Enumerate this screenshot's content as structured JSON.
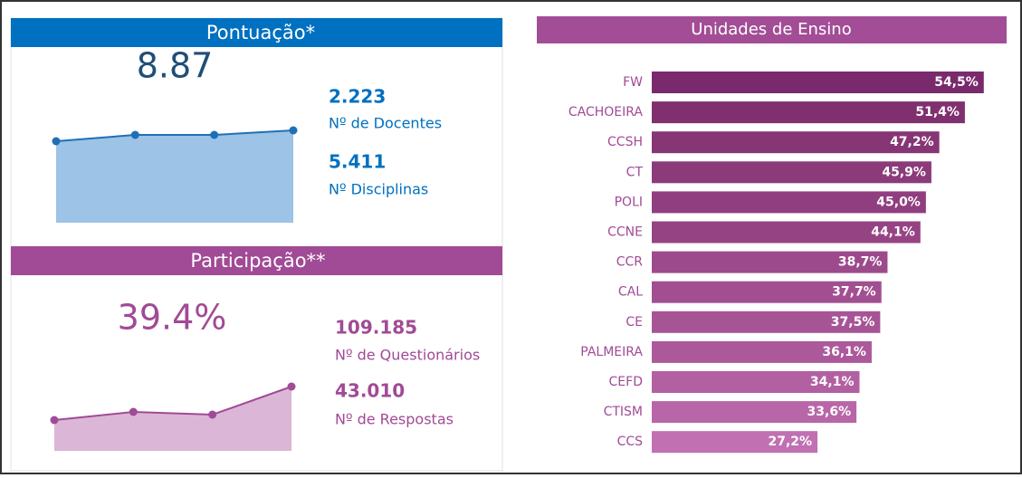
{
  "pontuacao": {
    "title": "Pontuação*",
    "kpi": "8.87",
    "stats": [
      {
        "value": "2.223",
        "label": "Nº de Docentes"
      },
      {
        "value": "5.411",
        "label": "Nº Disciplinas"
      }
    ]
  },
  "participacao": {
    "title": "Participação**",
    "kpi": "39.4%",
    "stats": [
      {
        "value": "109.185",
        "label": "Nº de Questionários"
      },
      {
        "value": "43.010",
        "label": "Nº de Respostas"
      }
    ]
  },
  "chart_data": [
    {
      "type": "line",
      "values": [
        90,
        97,
        97,
        102
      ],
      "ylim": [
        0,
        116
      ],
      "color": "#1f6fb8",
      "area_color": "#9dc3e6"
    },
    {
      "type": "line",
      "values": [
        34,
        43,
        40,
        71
      ],
      "ylim": [
        0,
        88
      ],
      "color": "#a14a96",
      "area_color": "#dcb6d6"
    },
    {
      "type": "bar",
      "title": "Unidades de Ensino",
      "categories": [
        "FW",
        "CACHOEIRA",
        "CCSH",
        "CT",
        "POLI",
        "CCNE",
        "CCR",
        "CAL",
        "CE",
        "PALMEIRA",
        "CEFD",
        "CTISM",
        "CCS"
      ],
      "values": [
        54.5,
        51.4,
        47.2,
        45.9,
        45.0,
        44.1,
        38.7,
        37.7,
        37.5,
        36.1,
        34.1,
        33.6,
        27.2
      ],
      "value_labels": [
        "54,5%",
        "51,4%",
        "47,2%",
        "45,9%",
        "45,0%",
        "44,1%",
        "38,7%",
        "37,7%",
        "37,5%",
        "36,1%",
        "34,1%",
        "33,6%",
        "27,2%"
      ],
      "colors": [
        "#7a2a6c",
        "#80306f",
        "#863575",
        "#8b3a7a",
        "#903e7f",
        "#964384",
        "#9d4a8c",
        "#a24f91",
        "#a75496",
        "#ac599b",
        "#b260a2",
        "#b866a8",
        "#c170b2"
      ],
      "xlim": [
        0,
        60
      ]
    }
  ]
}
